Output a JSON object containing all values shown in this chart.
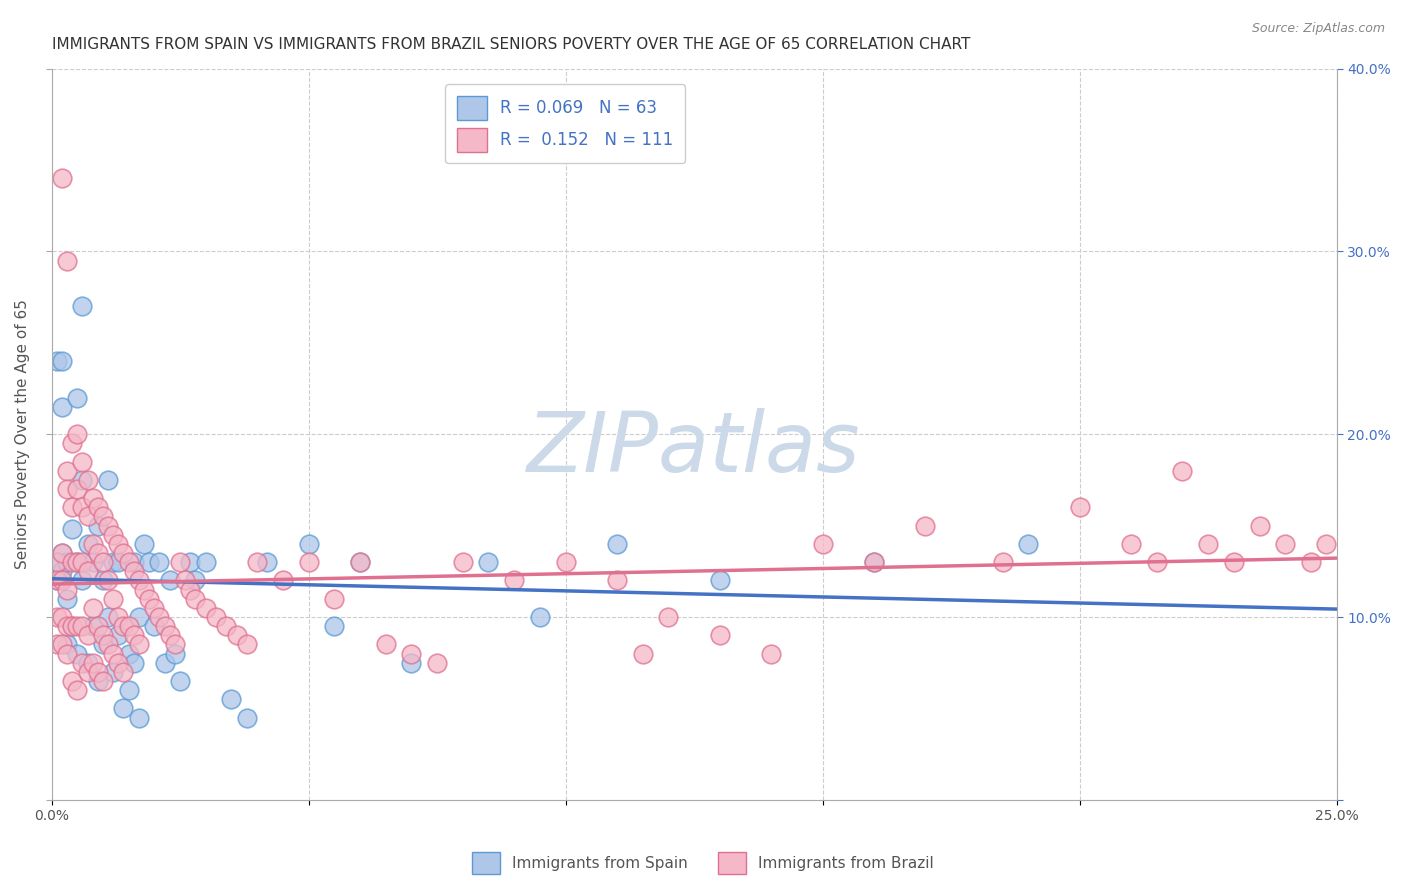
{
  "title": "IMMIGRANTS FROM SPAIN VS IMMIGRANTS FROM BRAZIL SENIORS POVERTY OVER THE AGE OF 65 CORRELATION CHART",
  "source": "Source: ZipAtlas.com",
  "ylabel": "Seniors Poverty Over the Age of 65",
  "xlim": [
    0.0,
    0.25
  ],
  "ylim": [
    0.0,
    0.4
  ],
  "xtick_positions": [
    0.0,
    0.05,
    0.1,
    0.15,
    0.2,
    0.25
  ],
  "xtick_labels": [
    "0.0%",
    "",
    "",
    "",
    "",
    "25.0%"
  ],
  "ytick_positions": [
    0.0,
    0.1,
    0.2,
    0.3,
    0.4
  ],
  "ytick_labels_right": [
    "",
    "10.0%",
    "20.0%",
    "30.0%",
    "40.0%"
  ],
  "series": [
    {
      "name": "Immigrants from Spain",
      "R": 0.069,
      "N": 63,
      "face_color": "#aec6e8",
      "edge_color": "#5b9bd5",
      "line_color": "#4472c4",
      "x": [
        0.001,
        0.001,
        0.001,
        0.002,
        0.002,
        0.002,
        0.002,
        0.003,
        0.003,
        0.003,
        0.004,
        0.004,
        0.005,
        0.005,
        0.005,
        0.006,
        0.006,
        0.006,
        0.007,
        0.007,
        0.008,
        0.008,
        0.009,
        0.009,
        0.01,
        0.01,
        0.011,
        0.011,
        0.012,
        0.012,
        0.013,
        0.013,
        0.014,
        0.015,
        0.015,
        0.016,
        0.016,
        0.017,
        0.017,
        0.018,
        0.019,
        0.02,
        0.021,
        0.022,
        0.023,
        0.024,
        0.025,
        0.027,
        0.028,
        0.03,
        0.035,
        0.038,
        0.042,
        0.05,
        0.055,
        0.06,
        0.07,
        0.085,
        0.095,
        0.11,
        0.13,
        0.16,
        0.19
      ],
      "y": [
        0.13,
        0.12,
        0.24,
        0.125,
        0.135,
        0.215,
        0.24,
        0.11,
        0.085,
        0.13,
        0.148,
        0.095,
        0.13,
        0.08,
        0.22,
        0.12,
        0.27,
        0.175,
        0.075,
        0.14,
        0.095,
        0.13,
        0.15,
        0.065,
        0.12,
        0.085,
        0.1,
        0.175,
        0.13,
        0.07,
        0.13,
        0.09,
        0.05,
        0.06,
        0.08,
        0.13,
        0.075,
        0.045,
        0.1,
        0.14,
        0.13,
        0.095,
        0.13,
        0.075,
        0.12,
        0.08,
        0.065,
        0.13,
        0.12,
        0.13,
        0.055,
        0.045,
        0.13,
        0.14,
        0.095,
        0.13,
        0.075,
        0.13,
        0.1,
        0.14,
        0.12,
        0.13,
        0.14
      ]
    },
    {
      "name": "Immigrants from Brazil",
      "R": 0.152,
      "N": 111,
      "face_color": "#f4b8c8",
      "edge_color": "#e07090",
      "line_color": "#e07090",
      "x": [
        0.001,
        0.001,
        0.001,
        0.001,
        0.002,
        0.002,
        0.002,
        0.002,
        0.002,
        0.003,
        0.003,
        0.003,
        0.003,
        0.003,
        0.004,
        0.004,
        0.004,
        0.004,
        0.005,
        0.005,
        0.005,
        0.005,
        0.006,
        0.006,
        0.006,
        0.006,
        0.007,
        0.007,
        0.007,
        0.007,
        0.008,
        0.008,
        0.008,
        0.009,
        0.009,
        0.009,
        0.01,
        0.01,
        0.01,
        0.011,
        0.011,
        0.012,
        0.012,
        0.013,
        0.013,
        0.014,
        0.014,
        0.015,
        0.015,
        0.016,
        0.016,
        0.017,
        0.017,
        0.018,
        0.019,
        0.02,
        0.021,
        0.022,
        0.023,
        0.024,
        0.025,
        0.026,
        0.027,
        0.028,
        0.03,
        0.032,
        0.034,
        0.036,
        0.038,
        0.04,
        0.045,
        0.05,
        0.055,
        0.06,
        0.065,
        0.07,
        0.075,
        0.08,
        0.09,
        0.1,
        0.11,
        0.115,
        0.12,
        0.13,
        0.14,
        0.15,
        0.16,
        0.17,
        0.185,
        0.2,
        0.21,
        0.215,
        0.22,
        0.225,
        0.23,
        0.235,
        0.24,
        0.245,
        0.248,
        0.003,
        0.004,
        0.005,
        0.006,
        0.007,
        0.008,
        0.009,
        0.01,
        0.011,
        0.012,
        0.013,
        0.014
      ],
      "y": [
        0.13,
        0.12,
        0.1,
        0.085,
        0.34,
        0.135,
        0.12,
        0.1,
        0.085,
        0.18,
        0.17,
        0.115,
        0.095,
        0.08,
        0.195,
        0.16,
        0.13,
        0.095,
        0.2,
        0.17,
        0.13,
        0.095,
        0.185,
        0.16,
        0.13,
        0.095,
        0.175,
        0.155,
        0.125,
        0.09,
        0.165,
        0.14,
        0.105,
        0.16,
        0.135,
        0.095,
        0.155,
        0.13,
        0.09,
        0.15,
        0.12,
        0.145,
        0.11,
        0.14,
        0.1,
        0.135,
        0.095,
        0.13,
        0.095,
        0.125,
        0.09,
        0.12,
        0.085,
        0.115,
        0.11,
        0.105,
        0.1,
        0.095,
        0.09,
        0.085,
        0.13,
        0.12,
        0.115,
        0.11,
        0.105,
        0.1,
        0.095,
        0.09,
        0.085,
        0.13,
        0.12,
        0.13,
        0.11,
        0.13,
        0.085,
        0.08,
        0.075,
        0.13,
        0.12,
        0.13,
        0.12,
        0.08,
        0.1,
        0.09,
        0.08,
        0.14,
        0.13,
        0.15,
        0.13,
        0.16,
        0.14,
        0.13,
        0.18,
        0.14,
        0.13,
        0.15,
        0.14,
        0.13,
        0.14,
        0.295,
        0.065,
        0.06,
        0.075,
        0.07,
        0.075,
        0.07,
        0.065,
        0.085,
        0.08,
        0.075,
        0.07
      ]
    }
  ],
  "watermark_text": "ZIPatlas",
  "watermark_color": "#ccd9e8",
  "background_color": "#ffffff",
  "grid_color": "#cccccc",
  "title_fontsize": 11,
  "axis_label_fontsize": 11,
  "tick_fontsize": 10,
  "source_fontsize": 9
}
